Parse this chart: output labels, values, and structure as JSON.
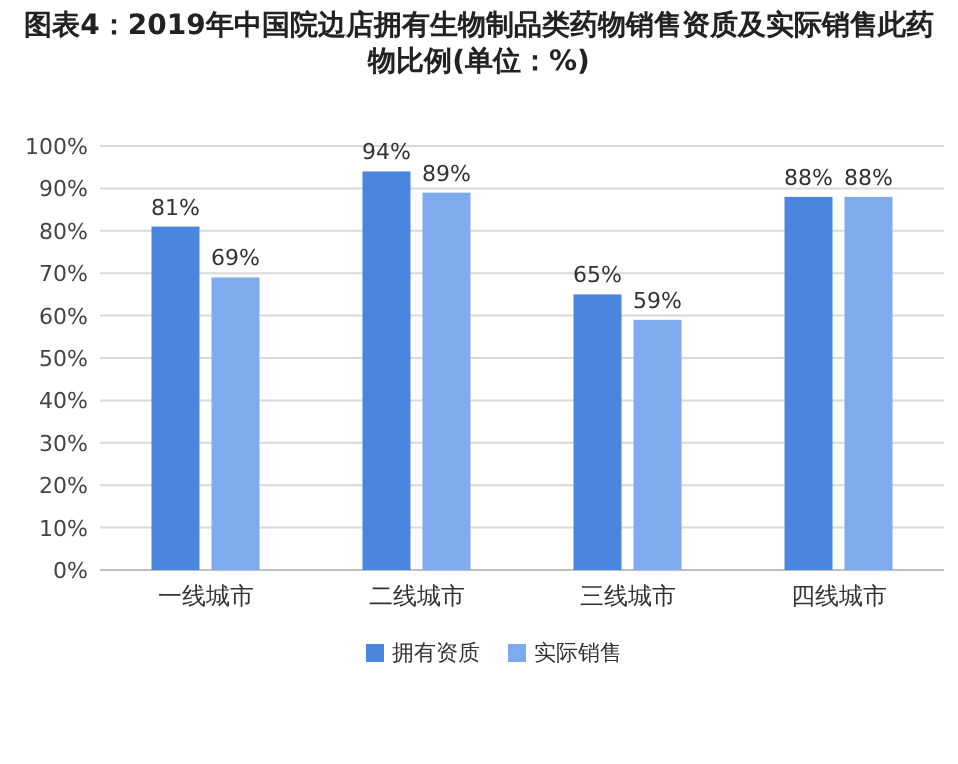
{
  "chart_data": {
    "type": "bar",
    "title": "图表4：2019年中国院边店拥有生物制品类药物销售资质及实际销售此药物比例(单位：%)",
    "categories": [
      "一线城市",
      "二线城市",
      "三线城市",
      "四线城市"
    ],
    "series": [
      {
        "name": "拥有资质",
        "color": "#4a86e0",
        "values": [
          81,
          94,
          65,
          88
        ],
        "value_labels": [
          "81%",
          "94%",
          "65%",
          "88%"
        ]
      },
      {
        "name": "实际销售",
        "color": "#7eaaee",
        "values": [
          69,
          89,
          59,
          88
        ],
        "value_labels": [
          "69%",
          "89%",
          "59%",
          "88%"
        ]
      }
    ],
    "ylim": [
      0,
      100
    ],
    "yticks": [
      {
        "value": 0,
        "label": "0%"
      },
      {
        "value": 10,
        "label": "10%"
      },
      {
        "value": 20,
        "label": "20%"
      },
      {
        "value": 30,
        "label": "30%"
      },
      {
        "value": 40,
        "label": "40%"
      },
      {
        "value": 50,
        "label": "50%"
      },
      {
        "value": 60,
        "label": "60%"
      },
      {
        "value": 70,
        "label": "70%"
      },
      {
        "value": 80,
        "label": "80%"
      },
      {
        "value": 90,
        "label": "90%"
      },
      {
        "value": 100,
        "label": "100%"
      }
    ],
    "grid": "y",
    "legend": "bottom"
  }
}
